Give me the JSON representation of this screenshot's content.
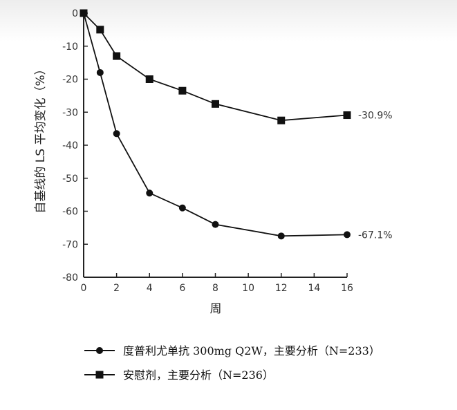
{
  "chart_data": {
    "type": "line",
    "title": "",
    "xlabel": "周",
    "ylabel": "自基线的 LS 平均变化（%）",
    "x": [
      0,
      1,
      2,
      4,
      6,
      8,
      12,
      16
    ],
    "xticks": [
      0,
      2,
      4,
      6,
      8,
      10,
      12,
      14,
      16
    ],
    "xlim": [
      0,
      16
    ],
    "ylim": [
      -80,
      0
    ],
    "yticks": [
      0,
      -10,
      -20,
      -30,
      -40,
      -50,
      -60,
      -70,
      -80
    ],
    "grid": false,
    "legend_position": "bottom-center",
    "series": [
      {
        "name": "度普利尤单抗 300mg Q2W，主要分析（N=233）",
        "marker": "circle",
        "values": [
          0,
          -18,
          -36.5,
          -54.5,
          -59,
          -64,
          -67.5,
          -67.1
        ],
        "end_label": "-67.1%"
      },
      {
        "name": "安慰剂，主要分析（N=236）",
        "marker": "square",
        "values": [
          0,
          -5,
          -13,
          -20,
          -23.5,
          -27.5,
          -32.5,
          -30.9
        ],
        "end_label": "-30.9%"
      }
    ],
    "colors": {
      "line": "#111111",
      "axis": "#222222"
    }
  }
}
